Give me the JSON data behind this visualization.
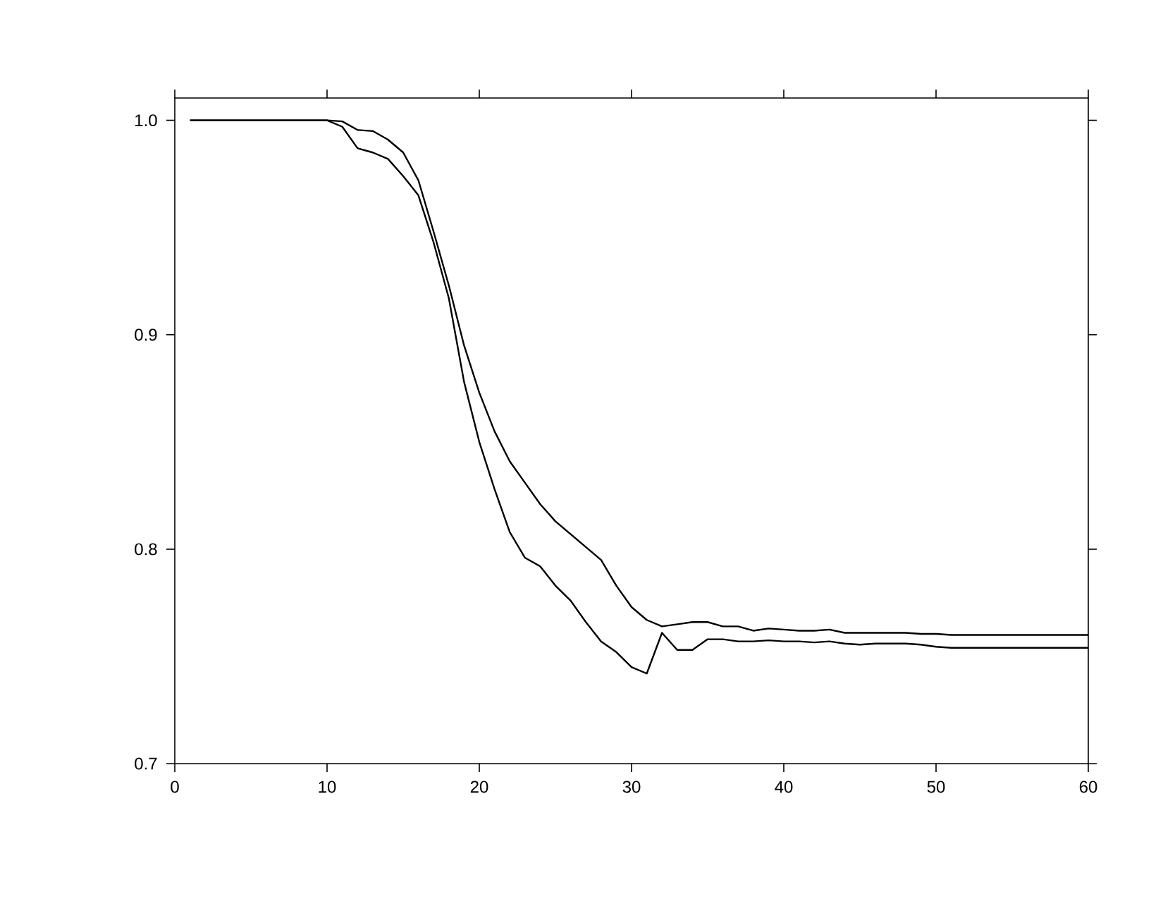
{
  "chart_data": {
    "type": "line",
    "xlim": [
      0,
      60
    ],
    "ylim": [
      0.7,
      1.0104
    ],
    "xticks": [
      0,
      10,
      20,
      30,
      40,
      50,
      60
    ],
    "yticks": [
      0.7,
      0.8,
      0.9,
      {
        "value": 1.0,
        "label": "1.0"
      }
    ],
    "grid": false,
    "marker": "none",
    "line_style": "solid",
    "x": [
      1,
      2,
      3,
      4,
      5,
      6,
      7,
      8,
      9,
      10,
      11,
      12,
      13,
      14,
      15,
      16,
      17,
      18,
      19,
      20,
      21,
      22,
      23,
      24,
      25,
      26,
      27,
      28,
      29,
      30,
      31,
      32,
      33,
      34,
      35,
      36,
      37,
      38,
      39,
      40,
      41,
      42,
      43,
      44,
      45,
      46,
      47,
      48,
      49,
      50,
      51,
      52,
      53,
      54,
      55,
      56,
      57,
      58,
      59,
      60
    ],
    "series": [
      {
        "color": "#000000",
        "values": [
          1.0,
          1.0,
          1.0,
          1.0,
          1.0,
          1.0,
          1.0,
          1.0,
          1.0,
          1.0,
          0.9995,
          0.9955,
          0.995,
          0.991,
          0.985,
          0.972,
          0.948,
          0.923,
          0.895,
          0.873,
          0.855,
          0.841,
          0.831,
          0.821,
          0.813,
          0.807,
          0.801,
          0.795,
          0.783,
          0.773,
          0.767,
          0.764,
          0.765,
          0.766,
          0.766,
          0.764,
          0.764,
          0.762,
          0.763,
          0.7625,
          0.762,
          0.762,
          0.7625,
          0.761,
          0.761,
          0.761,
          0.761,
          0.761,
          0.7605,
          0.7605,
          0.76,
          0.76,
          0.76,
          0.76,
          0.76,
          0.76,
          0.76,
          0.76,
          0.76,
          0.76
        ]
      },
      {
        "color": "#000000",
        "values": [
          1.0,
          1.0,
          1.0,
          1.0,
          1.0,
          1.0,
          1.0,
          1.0,
          1.0,
          1.0,
          0.997,
          0.987,
          0.985,
          0.982,
          0.974,
          0.965,
          0.943,
          0.917,
          0.878,
          0.85,
          0.828,
          0.808,
          0.796,
          0.792,
          0.783,
          0.776,
          0.766,
          0.757,
          0.752,
          0.745,
          0.742,
          0.761,
          0.753,
          0.753,
          0.758,
          0.758,
          0.757,
          0.757,
          0.7575,
          0.757,
          0.757,
          0.7565,
          0.757,
          0.756,
          0.7555,
          0.756,
          0.756,
          0.756,
          0.7555,
          0.7545,
          0.754,
          0.754,
          0.754,
          0.754,
          0.754,
          0.754,
          0.754,
          0.754,
          0.754,
          0.754
        ]
      }
    ]
  }
}
